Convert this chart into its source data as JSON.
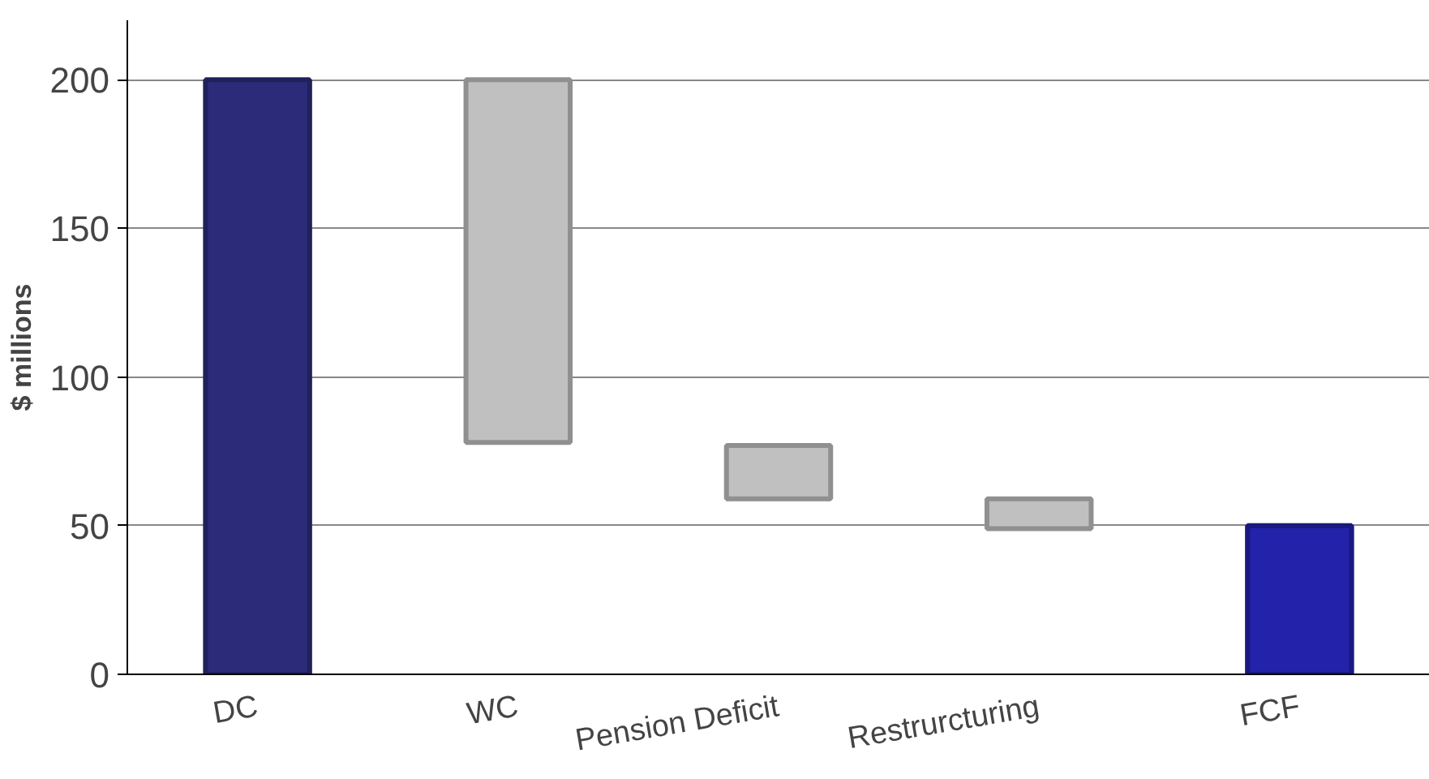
{
  "chart_data": {
    "type": "bar",
    "categories": [
      "DC",
      "WC",
      "Pension Deficit",
      "Restrurcturing",
      "FCF"
    ],
    "values": [
      200,
      122,
      18,
      10,
      50
    ],
    "base": [
      0,
      78,
      59,
      49,
      0
    ],
    "colors": [
      "#2b2b7a",
      "#c0c0c0",
      "#c0c0c0",
      "#c0c0c0",
      "#2222aa"
    ],
    "ylabel": "$ millions",
    "ylim": [
      0,
      220
    ],
    "yticks": [
      0,
      50,
      100,
      150,
      200
    ],
    "grid": "y"
  }
}
